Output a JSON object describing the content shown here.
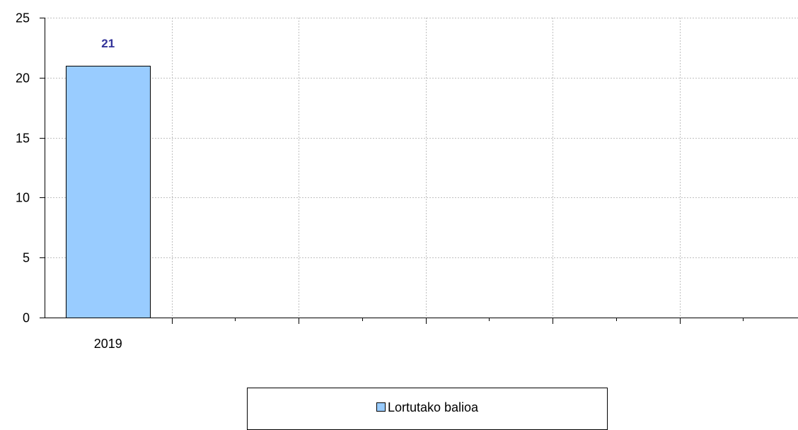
{
  "chart_data": {
    "type": "bar",
    "categories": [
      "2019",
      "",
      "",
      "",
      "",
      ""
    ],
    "series": [
      {
        "name": "Lortutako balioa",
        "values": [
          21,
          null,
          null,
          null,
          null,
          null
        ],
        "color": "#99ccff",
        "data_labels": [
          "21",
          "",
          "",
          "",
          "",
          ""
        ]
      }
    ],
    "ylim": [
      0,
      25
    ],
    "yticks": [
      "0",
      "5",
      "10",
      "15",
      "20",
      "25"
    ],
    "grid": true,
    "legend": "bottom",
    "data_label_color": "#333399",
    "grid_color": "#bfbfbf",
    "bar_border_color": "#000000"
  }
}
